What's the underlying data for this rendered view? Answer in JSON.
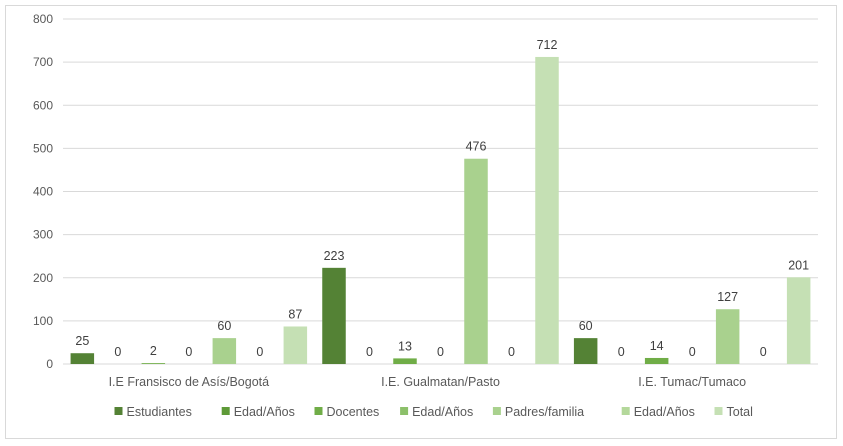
{
  "chart_data": {
    "type": "bar",
    "title": "",
    "xlabel": "",
    "ylabel": "",
    "ylim": [
      0,
      800
    ],
    "yticks": [
      0,
      100,
      200,
      300,
      400,
      500,
      600,
      700,
      800
    ],
    "grid": true,
    "legend_position": "bottom",
    "categories": [
      "I.E Fransisco de Asís/Bogotá",
      "I.E. Gualmatan/Pasto",
      "I.E. Tumac/Tumaco"
    ],
    "series": [
      {
        "name": "Estudiantes",
        "color": "#548235",
        "values": [
          25,
          223,
          60
        ]
      },
      {
        "name": "Edad/Años",
        "color": "#5e9a38",
        "values": [
          0,
          0,
          0
        ]
      },
      {
        "name": "Docentes",
        "color": "#70ad47",
        "values": [
          2,
          13,
          14
        ]
      },
      {
        "name": "Edad/Años",
        "color": "#8cc06a",
        "values": [
          0,
          0,
          0
        ]
      },
      {
        "name": "Padres/familia",
        "color": "#a9d18e",
        "values": [
          60,
          476,
          127
        ]
      },
      {
        "name": "Edad/Años",
        "color": "#b4d89b",
        "values": [
          0,
          0,
          0
        ]
      },
      {
        "name": "Total",
        "color": "#c5e0b4",
        "values": [
          87,
          712,
          201
        ]
      }
    ]
  }
}
